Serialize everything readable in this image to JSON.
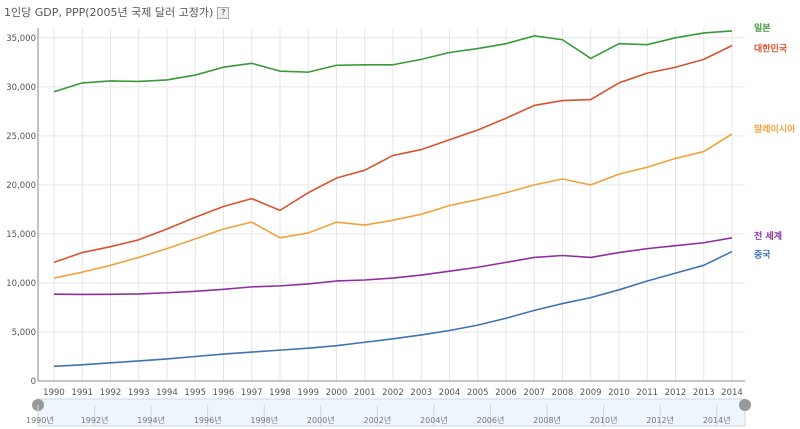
{
  "chart_data": {
    "type": "line",
    "title": "1인당 GDP, PPP(2005년 국제 달러 고정가)",
    "help_label": "?",
    "x": [
      1990,
      1991,
      1992,
      1993,
      1994,
      1995,
      1996,
      1997,
      1998,
      1999,
      2000,
      2001,
      2002,
      2003,
      2004,
      2005,
      2006,
      2007,
      2008,
      2009,
      2010,
      2011,
      2012,
      2013,
      2014
    ],
    "y_ticks": [
      "0",
      "5,000",
      "10,000",
      "15,000",
      "20,000",
      "25,000",
      "30,000",
      "35,000"
    ],
    "ylim": [
      0,
      36000
    ],
    "xlabel": "",
    "ylabel": "",
    "series": [
      {
        "name": "일본",
        "color": "#3a9a3a",
        "values": [
          29500,
          30400,
          30600,
          30550,
          30700,
          31200,
          32000,
          32400,
          31600,
          31500,
          32200,
          32250,
          32250,
          32800,
          33500,
          33900,
          34400,
          35200,
          34800,
          32900,
          34400,
          34300,
          35000,
          35500,
          35700
        ]
      },
      {
        "name": "대한민국",
        "color": "#d9532f",
        "values": [
          12100,
          13100,
          13700,
          14400,
          15500,
          16700,
          17800,
          18600,
          17400,
          19200,
          20700,
          21500,
          23000,
          23600,
          24600,
          25600,
          26800,
          28100,
          28600,
          28700,
          30400,
          31400,
          32000,
          32800,
          34200
        ]
      },
      {
        "name": "말레이시아",
        "color": "#f2a23a",
        "values": [
          10500,
          11100,
          11800,
          12600,
          13500,
          14500,
          15500,
          16200,
          14600,
          15100,
          16200,
          15900,
          16400,
          17000,
          17900,
          18500,
          19200,
          20000,
          20600,
          20000,
          21100,
          21800,
          22700,
          23400,
          25200
        ]
      },
      {
        "name": "전 세계",
        "color": "#8e2fa0",
        "values": [
          8850,
          8830,
          8840,
          8880,
          9000,
          9150,
          9350,
          9600,
          9700,
          9900,
          10200,
          10300,
          10500,
          10800,
          11200,
          11600,
          12100,
          12600,
          12800,
          12600,
          13100,
          13500,
          13800,
          14100,
          14600
        ]
      },
      {
        "name": "중국",
        "color": "#3f73b6",
        "values": [
          1500,
          1650,
          1850,
          2050,
          2250,
          2500,
          2750,
          2950,
          3150,
          3350,
          3600,
          3950,
          4300,
          4700,
          5150,
          5700,
          6400,
          7200,
          7900,
          8500,
          9300,
          10200,
          11000,
          11800,
          13200
        ]
      }
    ],
    "navigator_labels": [
      "1990년",
      "1992년",
      "1994년",
      "1996년",
      "1998년",
      "2000년",
      "2002년",
      "2004년",
      "2006년",
      "2008년",
      "2010년",
      "2012년",
      "2014년"
    ]
  }
}
